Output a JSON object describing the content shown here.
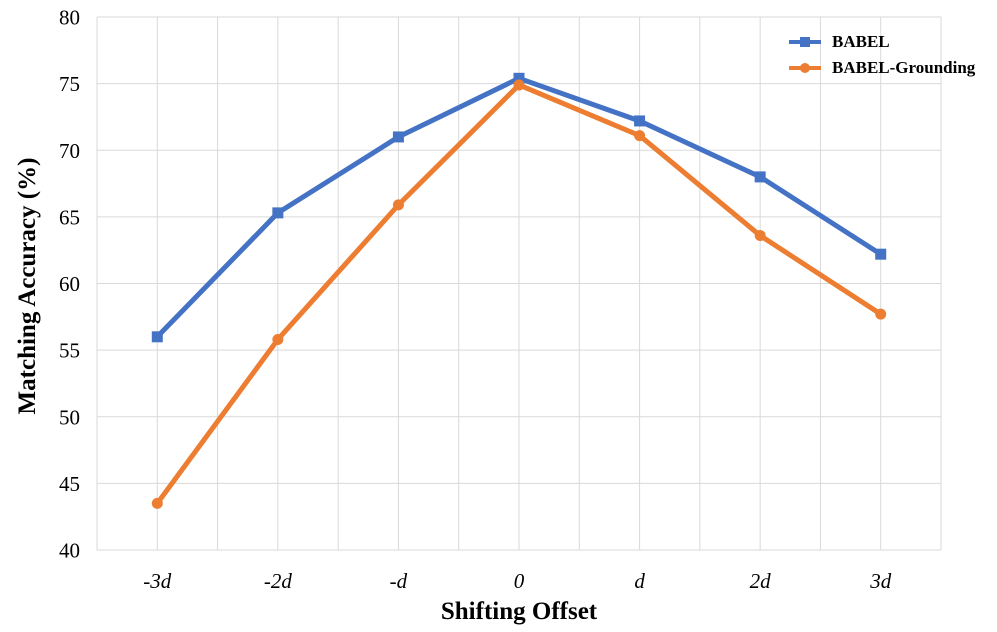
{
  "chart_data": {
    "type": "line",
    "title": "",
    "xlabel": "Shifting Offset",
    "ylabel": "Matching Accuracy (%)",
    "categories": [
      "-3d",
      "-2d",
      "-d",
      "0",
      "d",
      "2d",
      "3d"
    ],
    "series": [
      {
        "name": "BABEL",
        "color": "#4472C4",
        "marker": "square",
        "values": [
          56.0,
          65.3,
          71.0,
          75.4,
          72.2,
          68.0,
          62.2
        ]
      },
      {
        "name": "BABEL-Grounding",
        "color": "#ED7D31",
        "marker": "circle",
        "values": [
          43.5,
          55.8,
          65.9,
          74.9,
          71.1,
          63.6,
          57.7
        ]
      }
    ],
    "ylim": [
      40,
      80
    ],
    "ytick_step": 5,
    "grid": true,
    "gridline_color": "#D9D9D9",
    "legend_position": "top-right",
    "text_color": "#000000"
  }
}
